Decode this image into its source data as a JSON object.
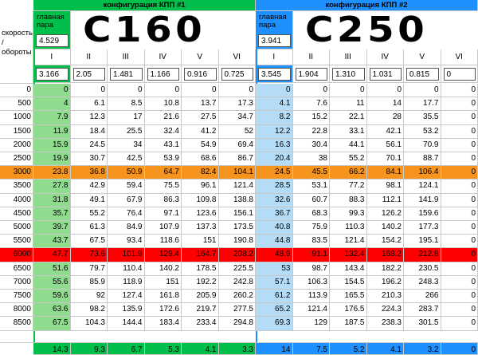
{
  "left_header": "скорость / обороты",
  "gearboxes": [
    {
      "title": "конфигурация КПП #1",
      "color": "#00c04b",
      "first_column_color": "#8fdc8f",
      "main_pair_label": "главная пара",
      "main_pair": "4.529",
      "handwriting": "C160",
      "gears": [
        "I",
        "II",
        "III",
        "IV",
        "V",
        "VI"
      ],
      "ratios": [
        "3.166",
        "2.05",
        "1.481",
        "1.166",
        "0.916",
        "0.725"
      ]
    },
    {
      "title": "конфигурация КПП #2",
      "color": "#1e90ff",
      "first_column_color": "#b4dcf6",
      "main_pair_label": "главная пара",
      "main_pair": "3.941",
      "handwriting": "C250",
      "gears": [
        "I",
        "II",
        "III",
        "IV",
        "V",
        "VI"
      ],
      "ratios": [
        "3.545",
        "1.904",
        "1.310",
        "1.031",
        "0.815",
        "0"
      ]
    }
  ],
  "rows": [
    {
      "rpm": 0,
      "values": [
        0,
        0,
        0,
        0,
        0,
        0,
        0,
        0,
        0,
        0,
        0,
        0
      ]
    },
    {
      "rpm": 500,
      "values": [
        4,
        6.1,
        8.5,
        10.8,
        13.7,
        17.3,
        4.1,
        7.6,
        11,
        14,
        17.7,
        0
      ]
    },
    {
      "rpm": 1000,
      "values": [
        7.9,
        12.3,
        17,
        21.6,
        27.5,
        34.7,
        8.2,
        15.2,
        22.1,
        28,
        35.5,
        0
      ]
    },
    {
      "rpm": 1500,
      "values": [
        11.9,
        18.4,
        25.5,
        32.4,
        41.2,
        52,
        12.2,
        22.8,
        33.1,
        42.1,
        53.2,
        0
      ]
    },
    {
      "rpm": 2000,
      "values": [
        15.9,
        24.5,
        34,
        43.1,
        54.9,
        69.4,
        16.3,
        30.4,
        44.1,
        56.1,
        70.9,
        0
      ]
    },
    {
      "rpm": 2500,
      "values": [
        19.9,
        30.7,
        42.5,
        53.9,
        68.6,
        86.7,
        20.4,
        38,
        55.2,
        70.1,
        88.7,
        0
      ]
    },
    {
      "rpm": 3000,
      "values": [
        23.8,
        36.8,
        50.9,
        64.7,
        82.4,
        104.1,
        24.5,
        45.5,
        66.2,
        84.1,
        106.4,
        0
      ],
      "color": "#f7941d"
    },
    {
      "rpm": 3500,
      "values": [
        27.8,
        42.9,
        59.4,
        75.5,
        96.1,
        121.4,
        28.5,
        53.1,
        77.2,
        98.1,
        124.1,
        0
      ]
    },
    {
      "rpm": 4000,
      "values": [
        31.8,
        49.1,
        67.9,
        86.3,
        109.8,
        138.8,
        32.6,
        60.7,
        88.3,
        112.1,
        141.9,
        0
      ]
    },
    {
      "rpm": 4500,
      "values": [
        35.7,
        55.2,
        76.4,
        97.1,
        123.6,
        156.1,
        36.7,
        68.3,
        99.3,
        126.2,
        159.6,
        0
      ]
    },
    {
      "rpm": 5000,
      "values": [
        39.7,
        61.3,
        84.9,
        107.9,
        137.3,
        173.5,
        40.8,
        75.9,
        110.3,
        140.2,
        177.3,
        0
      ]
    },
    {
      "rpm": 5500,
      "values": [
        43.7,
        67.5,
        93.4,
        118.6,
        151,
        190.8,
        44.8,
        83.5,
        121.4,
        154.2,
        195.1,
        0
      ]
    },
    {
      "rpm": 6000,
      "values": [
        47.7,
        73.6,
        101.9,
        129.4,
        164.7,
        208.2,
        48.9,
        91.1,
        132.4,
        168.2,
        212.8,
        0
      ],
      "color": "#ff0000"
    },
    {
      "rpm": 6500,
      "values": [
        51.6,
        79.7,
        110.4,
        140.2,
        178.5,
        225.5,
        53,
        98.7,
        143.4,
        182.2,
        230.5,
        0
      ]
    },
    {
      "rpm": 7000,
      "values": [
        55.6,
        85.9,
        118.9,
        151,
        192.2,
        242.8,
        57.1,
        106.3,
        154.5,
        196.2,
        248.3,
        0
      ]
    },
    {
      "rpm": 7500,
      "values": [
        59.6,
        92,
        127.4,
        161.8,
        205.9,
        260.2,
        61.2,
        113.9,
        165.5,
        210.3,
        266,
        0
      ]
    },
    {
      "rpm": 8000,
      "values": [
        63.6,
        98.2,
        135.9,
        172.6,
        219.7,
        277.5,
        65.2,
        121.4,
        176.5,
        224.3,
        283.7,
        0
      ]
    },
    {
      "rpm": 8500,
      "values": [
        67.5,
        104.3,
        144.4,
        183.4,
        233.4,
        294.8,
        69.3,
        129,
        187.5,
        238.3,
        301.5,
        0
      ]
    }
  ],
  "bottom": [
    14.3,
    9.3,
    6.7,
    5.3,
    4.1,
    3.3,
    14,
    7.5,
    5.2,
    4.1,
    3.2,
    0
  ]
}
